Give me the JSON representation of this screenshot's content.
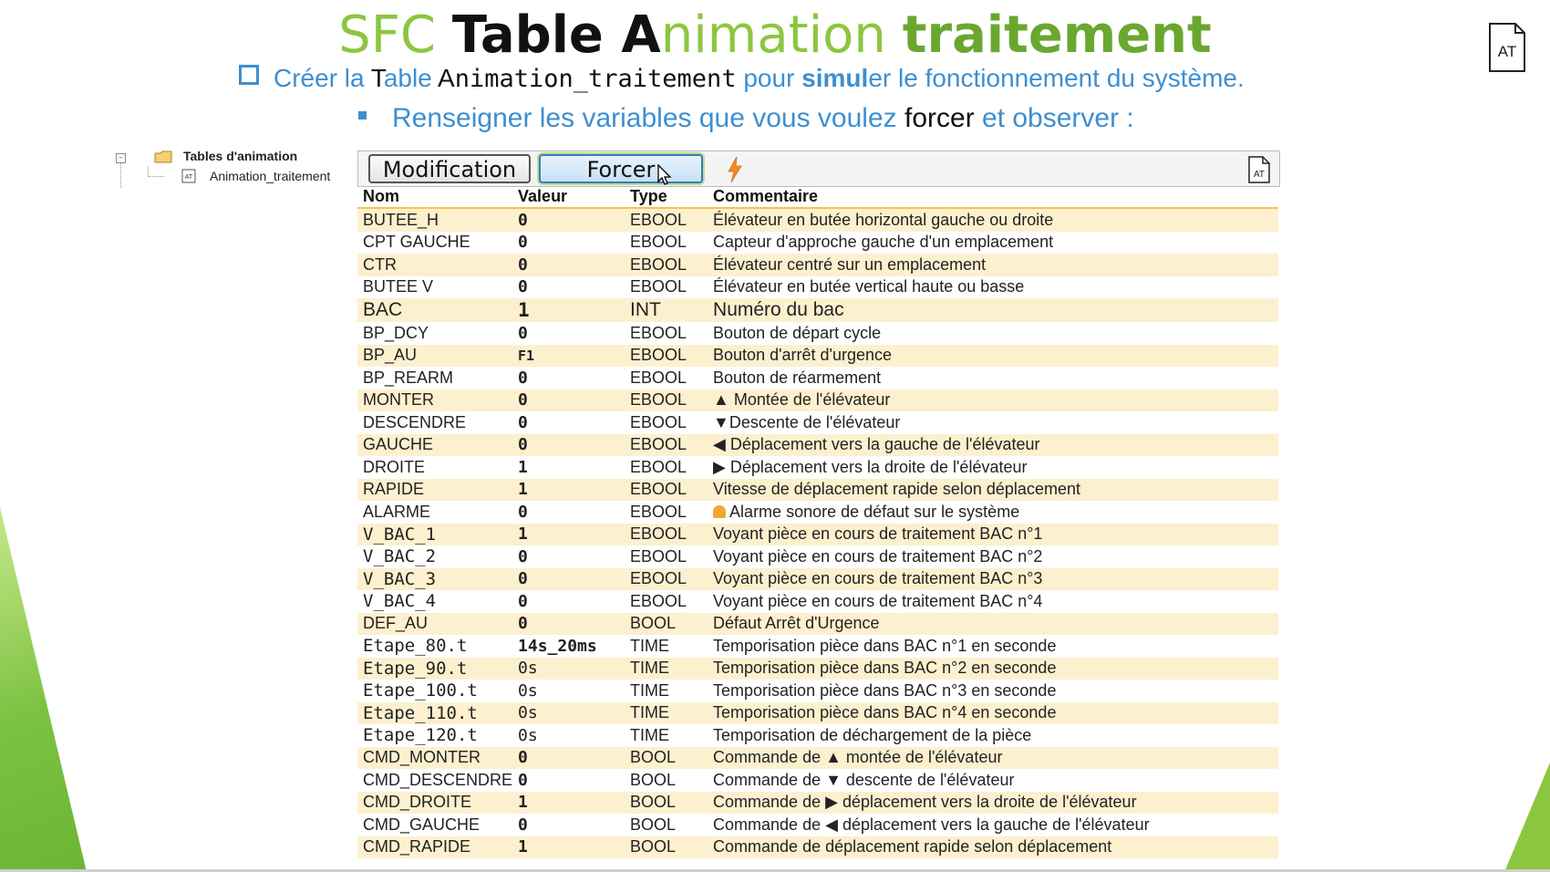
{
  "title": {
    "p1": "SFC ",
    "p2": "Table ",
    "p3": "A",
    "p4": "nimation ",
    "p5": "traitement"
  },
  "subtitle1": {
    "p1": "Créer la ",
    "p2": "T",
    "p3": "able ",
    "p4": "A",
    "p5": "nimation_traitement",
    "p6": " pour ",
    "p7": "simul",
    "p8": "er le fonctionnement du système."
  },
  "subtitle2": {
    "p1": "Renseigner les variables que vous voulez ",
    "p2": "forcer",
    "p3": " et observer :"
  },
  "corner_icon": {
    "label": "AT"
  },
  "tree": {
    "folder_label": "Tables d'animation",
    "item_label": "Animation_traitement",
    "item_icon_text": "AT"
  },
  "toolbar": {
    "modification_label": "Modification",
    "forcer_label": "Forcer",
    "at_icon_text": "AT"
  },
  "table": {
    "headers": [
      "Nom",
      "Valeur",
      "Type",
      "Commentaire"
    ],
    "rows": [
      {
        "nom": "BUTEE_H",
        "valeur": "0",
        "type": "EBOOL",
        "commentaire": "Élévateur en butée horizontal gauche ou droite"
      },
      {
        "nom": "CPT GAUCHE",
        "valeur": "0",
        "type": "EBOOL",
        "commentaire": "Capteur d'approche gauche d'un emplacement"
      },
      {
        "nom": "CTR",
        "valeur": "0",
        "type": "EBOOL",
        "commentaire": "Élévateur centré sur un emplacement"
      },
      {
        "nom": "BUTEE V",
        "valeur": "0",
        "type": "EBOOL",
        "commentaire": "Élévateur en butée vertical haute ou basse"
      },
      {
        "nom": "BAC",
        "valeur": "1",
        "type": "INT",
        "commentaire": "Numéro du bac"
      },
      {
        "nom": "BP_DCY",
        "valeur": "0",
        "type": "EBOOL",
        "commentaire": "Bouton de départ cycle"
      },
      {
        "nom": "BP_AU",
        "valeur": "F1",
        "type": "EBOOL",
        "commentaire": "Bouton d'arrêt d'urgence"
      },
      {
        "nom": "BP_REARM",
        "valeur": "0",
        "type": "EBOOL",
        "commentaire": "Bouton de réarmement"
      },
      {
        "nom": "MONTER",
        "valeur": "0",
        "type": "EBOOL",
        "commentaire": "▲ Montée de l'élévateur"
      },
      {
        "nom": "DESCENDRE",
        "valeur": "0",
        "type": "EBOOL",
        "commentaire": "▼Descente de l'élévateur"
      },
      {
        "nom": "GAUCHE",
        "valeur": "0",
        "type": "EBOOL",
        "commentaire": "◀ Déplacement vers la gauche de l'élévateur"
      },
      {
        "nom": "DROITE",
        "valeur": "1",
        "type": "EBOOL",
        "commentaire": "▶ Déplacement vers la droite de l'élévateur"
      },
      {
        "nom": "RAPIDE",
        "valeur": "1",
        "type": "EBOOL",
        "commentaire": "Vitesse de déplacement rapide selon déplacement"
      },
      {
        "nom": "ALARME",
        "valeur": "0",
        "type": "EBOOL",
        "commentaire": "Alarme sonore de défaut sur le système"
      },
      {
        "nom": "V_BAC_1",
        "valeur": "1",
        "type": "EBOOL",
        "commentaire": "Voyant pièce en cours de traitement BAC n°1"
      },
      {
        "nom": "V_BAC_2",
        "valeur": "0",
        "type": "EBOOL",
        "commentaire": "Voyant pièce en cours de traitement BAC n°2"
      },
      {
        "nom": "V_BAC_3",
        "valeur": "0",
        "type": "EBOOL",
        "commentaire": "Voyant pièce en cours de traitement BAC n°3"
      },
      {
        "nom": "V_BAC_4",
        "valeur": "0",
        "type": "EBOOL",
        "commentaire": "Voyant pièce en cours de traitement BAC n°4"
      },
      {
        "nom": "DEF_AU",
        "valeur": "0",
        "type": "BOOL",
        "commentaire": "Défaut Arrêt d'Urgence"
      },
      {
        "nom": "Etape_80.t",
        "valeur": "14s_20ms",
        "type": "TIME",
        "commentaire": "Temporisation pièce dans BAC n°1 en seconde"
      },
      {
        "nom": "Etape_90.t",
        "valeur": "0s",
        "type": "TIME",
        "commentaire": "Temporisation pièce dans BAC n°2 en seconde"
      },
      {
        "nom": "Etape_100.t",
        "valeur": "0s",
        "type": "TIME",
        "commentaire": "Temporisation pièce dans BAC n°3 en seconde"
      },
      {
        "nom": "Etape_110.t",
        "valeur": "0s",
        "type": "TIME",
        "commentaire": "Temporisation pièce dans BAC n°4 en seconde"
      },
      {
        "nom": "Etape_120.t",
        "valeur": "0s",
        "type": "TIME",
        "commentaire": "Temporisation de déchargement de la pièce"
      },
      {
        "nom": "CMD_MONTER",
        "valeur": "0",
        "type": "BOOL",
        "commentaire": "Commande de ▲ montée de l'élévateur"
      },
      {
        "nom": "CMD_DESCENDRE",
        "valeur": "0",
        "type": "BOOL",
        "commentaire": "Commande de ▼ descente de l'élévateur"
      },
      {
        "nom": "CMD_DROITE",
        "valeur": "1",
        "type": "BOOL",
        "commentaire": "Commande de ▶ déplacement vers la droite de l'élévateur"
      },
      {
        "nom": "CMD_GAUCHE",
        "valeur": "0",
        "type": "BOOL",
        "commentaire": "Commande de ◀ déplacement vers la gauche de l'élévateur"
      },
      {
        "nom": "CMD_RAPIDE",
        "valeur": "1",
        "type": "BOOL",
        "commentaire": "Commande de déplacement rapide selon déplacement"
      }
    ]
  },
  "colors": {
    "title_green": "#8cc63f",
    "subtitle_blue": "#3d8fd1",
    "value_zero_red": "#e0161d",
    "value_one_green": "#5a9a2e",
    "row_alt_bg": "#fdf0cf",
    "header_rule": "#f2c649"
  }
}
